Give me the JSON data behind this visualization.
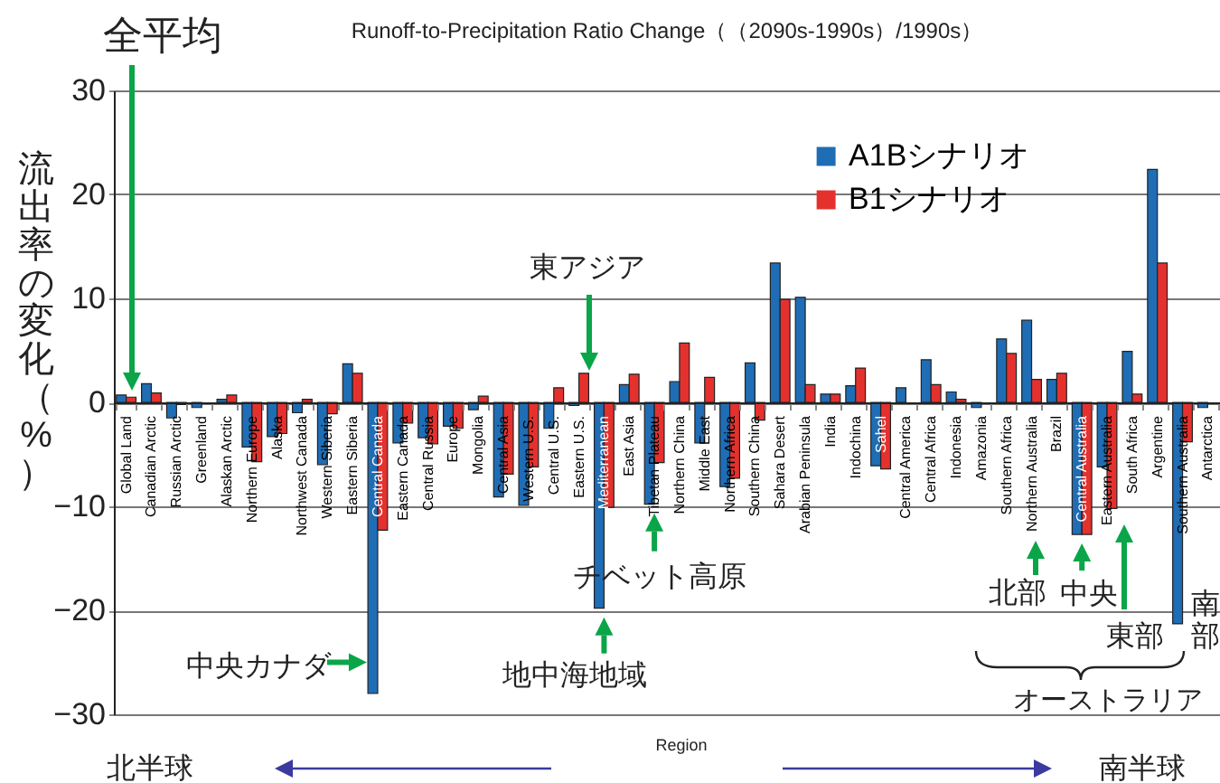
{
  "chart_data": {
    "type": "bar",
    "title": "Runoff-to-Precipitation Ratio Change（（2090s-1990s）/1990s）",
    "xlabel": "Region",
    "ylabel": "流出率の変化（%）",
    "categories": [
      "Global Land",
      "Canadian Arctic",
      "Russian Arctic",
      "Greenland",
      "Alaskan Arctic",
      "Northern Europe",
      "Alaska",
      "Northwest Canada",
      "Western Siberia",
      "Eastern Siberia",
      "Central Canada",
      "Eastern Canada",
      "Central Russia",
      "Europe",
      "Mongolia",
      "Central Asia",
      "Western U.S.",
      "Central U.S.",
      "Eastern U.S.",
      "Mediterranean",
      "East Asia",
      "Tibetan Plateau",
      "Northern China",
      "Middle East",
      "Northern Africa",
      "Southern China",
      "Sahara Desert",
      "Arabian Peninsula",
      "India",
      "Indochina",
      "Sahel",
      "Central America",
      "Central Africa",
      "Indonesia",
      "Amazonia",
      "Southern Africa",
      "Northern Australia",
      "Brazil",
      "Central Australia",
      "Eastern Australia",
      "South Africa",
      "Argentine",
      "Southern Australia",
      "Antarctica"
    ],
    "series": [
      {
        "name": "A1Bシナリオ",
        "color": "#1f6db5",
        "values": [
          0.7,
          1.8,
          -1.5,
          -0.5,
          0.3,
          -4.3,
          -3.3,
          -1.0,
          -6.0,
          3.7,
          -28.0,
          -3.9,
          -3.4,
          -2.3,
          -0.7,
          -9.1,
          -9.9,
          -2.5,
          -0.3,
          -19.8,
          1.7,
          -9.8,
          2.0,
          -3.9,
          -8.1,
          3.8,
          13.4,
          10.1,
          0.8,
          1.6,
          -6.1,
          1.4,
          4.1,
          1.0,
          -0.5,
          6.1,
          7.9,
          2.2,
          -12.7,
          -6.2,
          4.9,
          22.4,
          -21.3,
          -0.5
        ]
      },
      {
        "name": "B1シナリオ",
        "color": "#e5312e",
        "values": [
          0.5,
          0.9,
          -0.2,
          null,
          0.7,
          -5.7,
          -3.0,
          0.3,
          -1.1,
          2.8,
          -12.3,
          -2.0,
          -4.0,
          -2.5,
          0.6,
          -6.9,
          -6.2,
          1.4,
          2.8,
          -10.1,
          2.7,
          -5.8,
          5.7,
          2.4,
          -7.3,
          -1.7,
          9.9,
          1.7,
          0.8,
          3.3,
          -6.4,
          null,
          1.7,
          0.3,
          null,
          4.7,
          2.2,
          2.8,
          -12.7,
          -10.2,
          0.8,
          13.4,
          -3.8,
          null
        ]
      }
    ],
    "ylim": [
      -30,
      30
    ],
    "yticks": [
      -30,
      -20,
      -10,
      0,
      10,
      20,
      30
    ],
    "grid": "y",
    "legend": "top right",
    "annotations": [
      "全平均",
      "東アジア",
      {
        "text": "チベット高原",
        "x": "Tibetan Plateau",
        "y": -9.8
      },
      {
        "text": "中央カナダ",
        "x": "Central Canada",
        "y": -25
      },
      {
        "text": "地中海地域",
        "x": "Mediterranean",
        "y": -19.8
      },
      "北部",
      {
        "text": "中央",
        "x": "Central Australia",
        "y": -12.7
      },
      "東部",
      "南部",
      "オーストラリア",
      "北半球",
      "南半球"
    ]
  }
}
